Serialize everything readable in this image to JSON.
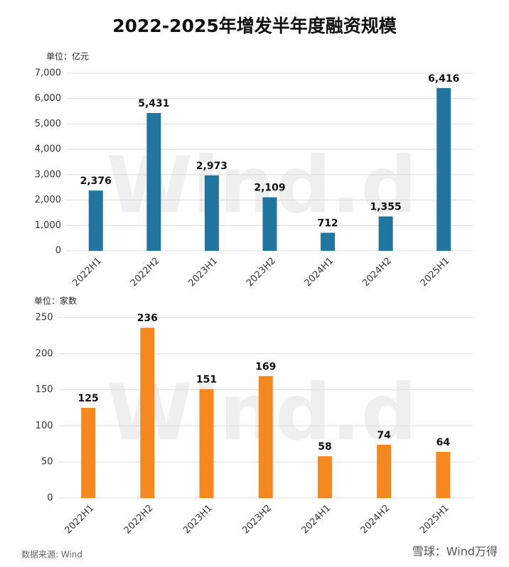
{
  "title": "2022-2025年增发半年度融资规模",
  "watermark": "Wind.d",
  "source": "数据来源: Wind",
  "footer": "雪球：Wind万得",
  "chart_data": [
    {
      "type": "bar",
      "unit_label": "单位：亿元",
      "categories": [
        "2022H1",
        "2022H2",
        "2023H1",
        "2023H2",
        "2024H1",
        "2024H2",
        "2025H1"
      ],
      "values": [
        2376,
        5431,
        2973,
        2109,
        712,
        1355,
        6416
      ],
      "value_labels": [
        "2,376",
        "5,431",
        "2,973",
        "2,109",
        "712",
        "1,355",
        "6,416"
      ],
      "color": "#21759f",
      "ylim": [
        0,
        7000
      ],
      "yticks": [
        0,
        {
          "value": 1000,
          "label": "1,000"
        },
        {
          "value": 2000,
          "label": "2,000"
        },
        {
          "value": 3000,
          "label": "3,000"
        },
        {
          "value": 4000,
          "label": "4,000"
        },
        {
          "value": 5000,
          "label": "5,000"
        },
        {
          "value": 6000,
          "label": "6,000"
        },
        {
          "value": 7000,
          "label": "7,000"
        }
      ],
      "grid": true
    },
    {
      "type": "bar",
      "unit_label": "单位：家数",
      "categories": [
        "2022H1",
        "2022H2",
        "2023H1",
        "2023H2",
        "2024H1",
        "2024H2",
        "2025H1"
      ],
      "values": [
        125,
        236,
        151,
        169,
        58,
        74,
        64
      ],
      "color": "#f5891f",
      "ylim": [
        0,
        250
      ],
      "yticks": [
        0,
        50,
        100,
        150,
        200,
        250
      ],
      "grid": true
    }
  ]
}
